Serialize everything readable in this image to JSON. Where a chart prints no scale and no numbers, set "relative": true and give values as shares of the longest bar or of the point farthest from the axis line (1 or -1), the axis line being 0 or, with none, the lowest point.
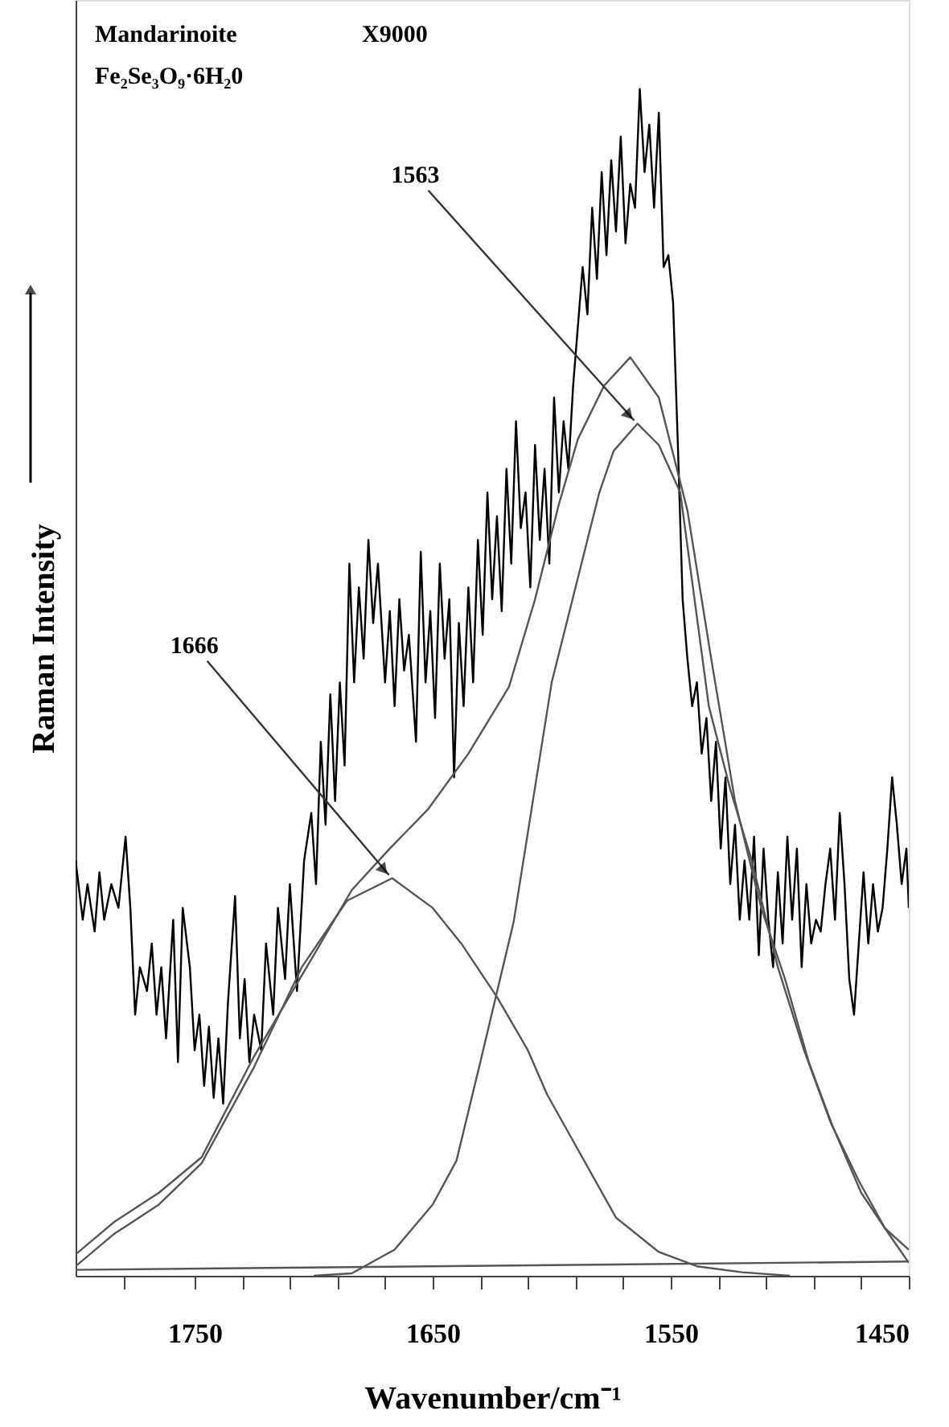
{
  "chart_data": {
    "type": "line",
    "relative": true,
    "xlabel": "Wavenumber/cm⁻¹",
    "ylabel": "Raman Intensity",
    "xlim": [
      1800,
      1450
    ],
    "xticks": [
      {
        "value": 1780,
        "label": null
      },
      1750,
      {
        "value": 1730,
        "label": null
      },
      {
        "value": 1710,
        "label": null
      },
      {
        "value": 1690,
        "label": null
      },
      {
        "value": 1670,
        "label": null
      },
      1650,
      {
        "value": 1630,
        "label": null
      },
      {
        "value": 1610,
        "label": null
      },
      {
        "value": 1590,
        "label": null
      },
      {
        "value": 1570,
        "label": null
      },
      1550,
      {
        "value": 1530,
        "label": null
      },
      {
        "value": 1510,
        "label": null
      },
      {
        "value": 1490,
        "label": null
      },
      {
        "value": 1470,
        "label": null
      },
      1450
    ],
    "grid": false,
    "legend": false,
    "annotations": [
      "Mandarinoite",
      "X9000",
      "Fe₂Se₃O₉·6H₂0",
      {
        "text": "1563",
        "x": 1564,
        "y": 0.718
      },
      {
        "text": "1666",
        "x": 1667,
        "y": 0.335
      }
    ],
    "series": [
      {
        "color": "#000000",
        "x": [
          1800,
          1797,
          1795,
          1792,
          1790,
          1788,
          1785,
          1782,
          1779,
          1777,
          1775,
          1773,
          1770,
          1768,
          1766,
          1764,
          1762,
          1759,
          1757,
          1755,
          1752,
          1750,
          1748,
          1746,
          1744,
          1742,
          1740,
          1738,
          1736,
          1733,
          1731,
          1729,
          1727,
          1725,
          1722,
          1720,
          1717,
          1715,
          1712,
          1710,
          1707,
          1704,
          1701,
          1699,
          1697,
          1695,
          1693,
          1691,
          1689,
          1687,
          1685,
          1683,
          1681,
          1679,
          1677,
          1675,
          1673,
          1670,
          1668,
          1666,
          1664,
          1662,
          1660,
          1657,
          1655,
          1653,
          1651,
          1649,
          1647,
          1645,
          1643,
          1641,
          1639,
          1637,
          1635,
          1633,
          1631,
          1629,
          1627,
          1625,
          1623,
          1621,
          1619,
          1617,
          1615,
          1613,
          1611,
          1609,
          1607,
          1605,
          1603,
          1601,
          1599,
          1597,
          1595,
          1593,
          1591,
          1589,
          1587,
          1585,
          1583,
          1581,
          1579,
          1577,
          1575,
          1573,
          1571,
          1569,
          1567,
          1565,
          1563,
          1561,
          1559,
          1557,
          1555,
          1553,
          1551,
          1549,
          1547,
          1545,
          1543,
          1541,
          1539,
          1537,
          1535,
          1533,
          1531,
          1529,
          1527,
          1525,
          1523,
          1521,
          1519,
          1517,
          1515,
          1513,
          1511,
          1509,
          1507,
          1505,
          1503,
          1501,
          1499,
          1497,
          1495,
          1493,
          1491,
          1489,
          1487,
          1485,
          1483,
          1481,
          1479,
          1477,
          1475,
          1473,
          1471,
          1469,
          1467,
          1465,
          1463,
          1461,
          1459,
          1457,
          1455,
          1453,
          1451,
          1450
        ],
        "values": [
          0.35,
          0.3,
          0.33,
          0.29,
          0.34,
          0.3,
          0.33,
          0.31,
          0.37,
          0.31,
          0.22,
          0.26,
          0.24,
          0.28,
          0.22,
          0.26,
          0.2,
          0.3,
          0.18,
          0.31,
          0.26,
          0.19,
          0.22,
          0.16,
          0.21,
          0.15,
          0.2,
          0.145,
          0.23,
          0.32,
          0.2,
          0.25,
          0.18,
          0.22,
          0.19,
          0.28,
          0.22,
          0.31,
          0.25,
          0.33,
          0.24,
          0.35,
          0.39,
          0.33,
          0.45,
          0.38,
          0.49,
          0.4,
          0.5,
          0.43,
          0.6,
          0.5,
          0.58,
          0.52,
          0.62,
          0.55,
          0.6,
          0.5,
          0.56,
          0.48,
          0.57,
          0.51,
          0.54,
          0.45,
          0.61,
          0.5,
          0.56,
          0.47,
          0.6,
          0.52,
          0.57,
          0.42,
          0.55,
          0.48,
          0.58,
          0.5,
          0.62,
          0.54,
          0.66,
          0.57,
          0.64,
          0.56,
          0.68,
          0.6,
          0.72,
          0.63,
          0.66,
          0.58,
          0.7,
          0.62,
          0.68,
          0.6,
          0.74,
          0.66,
          0.72,
          0.68,
          0.75,
          0.8,
          0.85,
          0.81,
          0.9,
          0.84,
          0.93,
          0.86,
          0.94,
          0.88,
          0.96,
          0.87,
          0.92,
          0.9,
          1.0,
          0.93,
          0.97,
          0.9,
          0.98,
          0.85,
          0.86,
          0.82,
          0.7,
          0.57,
          0.52,
          0.48,
          0.5,
          0.44,
          0.47,
          0.4,
          0.45,
          0.36,
          0.42,
          0.33,
          0.38,
          0.3,
          0.35,
          0.3,
          0.37,
          0.27,
          0.36,
          0.3,
          0.26,
          0.34,
          0.28,
          0.37,
          0.3,
          0.36,
          0.26,
          0.33,
          0.28,
          0.3,
          0.29,
          0.33,
          0.36,
          0.3,
          0.39,
          0.33,
          0.25,
          0.22,
          0.28,
          0.34,
          0.28,
          0.33,
          0.29,
          0.31,
          0.36,
          0.42,
          0.38,
          0.33,
          0.36,
          0.31
        ]
      },
      {
        "color": "#555555",
        "x": [
          1800,
          1784,
          1765,
          1747,
          1725,
          1700,
          1684,
          1668,
          1652,
          1635,
          1618,
          1607,
          1597,
          1589,
          1578,
          1567,
          1555,
          1543,
          1533,
          1523,
          1512,
          1502,
          1492,
          1482,
          1470,
          1460,
          1450
        ],
        "values": [
          0.018,
          0.045,
          0.07,
          0.1,
          0.185,
          0.27,
          0.325,
          0.36,
          0.393,
          0.44,
          0.496,
          0.57,
          0.65,
          0.705,
          0.75,
          0.774,
          0.74,
          0.645,
          0.52,
          0.4,
          0.31,
          0.25,
          0.18,
          0.126,
          0.07,
          0.04,
          0.022
        ]
      },
      {
        "color": "#555555",
        "x": [
          1700,
          1684,
          1666,
          1650,
          1640,
          1630,
          1616,
          1600,
          1590,
          1580,
          1574,
          1564,
          1555,
          1546,
          1534,
          1525,
          1516,
          1505,
          1494,
          1483,
          1471,
          1460,
          1450
        ],
        "values": [
          0.0,
          0.002,
          0.022,
          0.06,
          0.097,
          0.18,
          0.298,
          0.5,
          0.58,
          0.66,
          0.695,
          0.718,
          0.7,
          0.66,
          0.48,
          0.41,
          0.35,
          0.26,
          0.19,
          0.13,
          0.08,
          0.04,
          0.011
        ]
      },
      {
        "color": "#555555",
        "x": [
          1800,
          1784,
          1765,
          1747,
          1725,
          1705,
          1686,
          1667,
          1650,
          1638,
          1623,
          1610,
          1602,
          1590,
          1573,
          1555,
          1539,
          1520,
          1500
        ],
        "values": [
          0.008,
          0.035,
          0.06,
          0.095,
          0.176,
          0.26,
          0.316,
          0.335,
          0.31,
          0.28,
          0.235,
          0.19,
          0.153,
          0.11,
          0.049,
          0.02,
          0.008,
          0.003,
          0.0
        ]
      },
      {
        "color": "#555555",
        "x": [
          1800,
          1450
        ],
        "values": [
          0.005,
          0.012
        ]
      }
    ]
  }
}
